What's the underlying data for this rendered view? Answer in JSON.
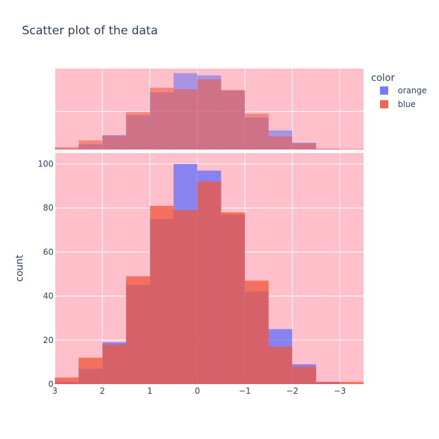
{
  "chart_data": {
    "type": "bar",
    "title": "Scatter plot of the data",
    "xlabel": "",
    "ylabel": "count",
    "x_reversed": true,
    "xlim": [
      3,
      -3.5
    ],
    "ylim": [
      0,
      105
    ],
    "barmode": "overlay",
    "bin_width": 0.5,
    "bin_starts": [
      3,
      2.5,
      2,
      1.5,
      1,
      0.5,
      0,
      -0.5,
      -1,
      -1.5,
      -2,
      -2.5,
      -3
    ],
    "xticks": [
      3,
      2,
      1,
      0,
      -1,
      -2,
      -3
    ],
    "xtick_labels": [
      "3",
      "2",
      "1",
      "0",
      "−1",
      "−2",
      "−3"
    ],
    "yticks": [
      0,
      20,
      40,
      60,
      80,
      100
    ],
    "ytick_labels": [
      "0",
      "20",
      "40",
      "60",
      "80",
      "100"
    ],
    "legend": {
      "title": "color",
      "placement": "right"
    },
    "marginal": "histogram",
    "plot_bgcolor": "#ffc0cb",
    "grid": true,
    "series": [
      {
        "name": "orange",
        "color": "#636efa",
        "values": [
          1,
          7,
          19,
          45,
          75,
          100,
          97,
          77,
          42,
          25,
          9,
          1,
          0
        ]
      },
      {
        "name": "blue",
        "color": "#ef553b",
        "values": [
          3,
          12,
          18,
          49,
          81,
          79,
          92,
          78,
          47,
          17,
          8,
          1,
          1
        ]
      }
    ]
  }
}
